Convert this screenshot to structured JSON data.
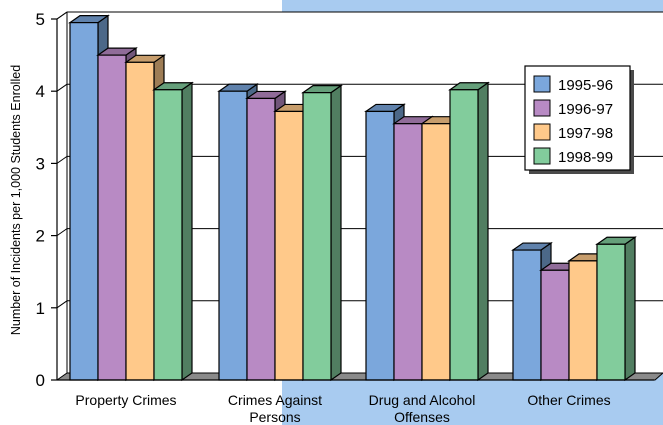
{
  "chart_data": {
    "type": "bar",
    "title": "",
    "xlabel": "",
    "ylabel": "Number of Incidents per 1,000 Students Enrolled",
    "ylim": [
      0,
      5
    ],
    "yticks": [
      "0",
      "1",
      "2",
      "3",
      "4",
      "5"
    ],
    "grid": true,
    "legend_position": "right",
    "categories": [
      [
        "Property Crimes"
      ],
      [
        "Crimes Against",
        "Persons"
      ],
      [
        "Drug and Alcohol",
        "Offenses"
      ],
      [
        "Other Crimes"
      ]
    ],
    "series": [
      {
        "name": "1995-96",
        "color": "#7ba7dc",
        "values": [
          4.95,
          4.0,
          3.72,
          1.8
        ]
      },
      {
        "name": "1996-97",
        "color": "#b88ac4",
        "values": [
          4.5,
          3.9,
          3.55,
          1.52
        ]
      },
      {
        "name": "1997-98",
        "color": "#ffc98a",
        "values": [
          4.4,
          3.72,
          3.55,
          1.65
        ]
      },
      {
        "name": "1998-99",
        "color": "#82cc9c",
        "values": [
          4.02,
          3.98,
          4.02,
          1.88
        ]
      }
    ],
    "background_accent": "#a8cbf0"
  }
}
